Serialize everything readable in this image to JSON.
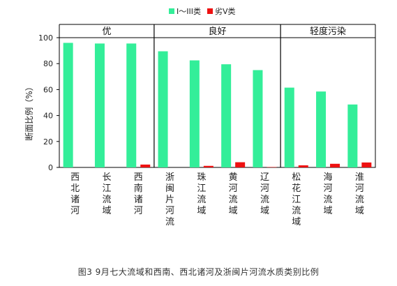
{
  "chart_data": {
    "type": "bar",
    "categories": [
      "西北诸河",
      "长江流域",
      "西南诸河",
      "浙闽片河流",
      "珠江流域",
      "黄河流域",
      "辽河流域",
      "松花江流域",
      "海河流域",
      "淮河流域"
    ],
    "series": [
      {
        "name": "I～III类",
        "color": "#33ee99",
        "values": [
          96,
          95.5,
          95.5,
          89.5,
          82.5,
          79.5,
          75,
          61.5,
          58.5,
          48.5
        ]
      },
      {
        "name": "劣V类",
        "color": "#ee1111",
        "values": [
          0,
          0,
          2.2,
          0,
          1.2,
          4,
          0.3,
          1.6,
          2.8,
          3.8
        ]
      }
    ],
    "groups": [
      {
        "label": "优",
        "count": 3
      },
      {
        "label": "良好",
        "count": 4
      },
      {
        "label": "轻度污染",
        "count": 3
      }
    ],
    "ylabel": "断面比例（%）",
    "ylim": [
      0,
      100
    ],
    "yticks": [
      0,
      20,
      40,
      60,
      80,
      100
    ],
    "legend_position": "top"
  },
  "caption": "图3  9月七大流域和西南、西北诸河及浙闽片河流水质类别比例"
}
